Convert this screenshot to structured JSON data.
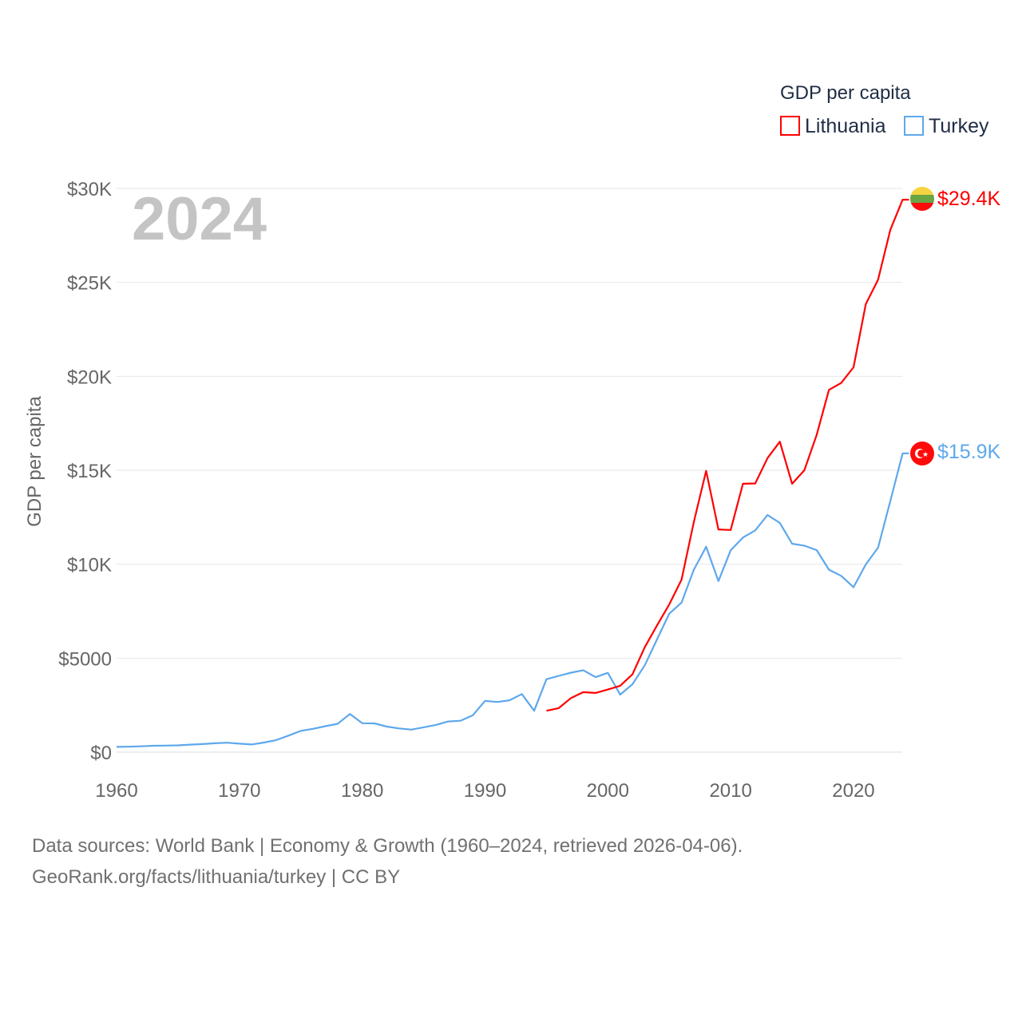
{
  "chart_data": {
    "type": "line",
    "title": "GDP per capita",
    "year_label": "2024",
    "xlabel": "",
    "ylabel": "GDP per capita",
    "xlim": [
      1960,
      2024
    ],
    "ylim": [
      0,
      30000
    ],
    "grid": true,
    "legend_placement": "top-right",
    "x_ticks": [
      1960,
      1970,
      1980,
      1990,
      2000,
      2010,
      2020
    ],
    "x_tick_labels": [
      "1960",
      "1970",
      "1980",
      "1990",
      "2000",
      "2010",
      "2020"
    ],
    "y_ticks": [
      0,
      5000,
      10000,
      15000,
      20000,
      25000,
      30000
    ],
    "y_tick_labels": [
      "$0",
      "$5000",
      "$10K",
      "$15K",
      "$20K",
      "$25K",
      "$30K"
    ],
    "series": [
      {
        "name": "Lithuania",
        "color": "#ff0000",
        "end_label": "$29.4K",
        "x": [
          1995,
          1996,
          1997,
          1998,
          1999,
          2000,
          2001,
          2002,
          2003,
          2004,
          2005,
          2006,
          2007,
          2008,
          2009,
          2010,
          2011,
          2012,
          2013,
          2014,
          2015,
          2016,
          2017,
          2018,
          2019,
          2020,
          2021,
          2022,
          2023,
          2024
        ],
        "values": [
          2200,
          2340,
          2880,
          3190,
          3150,
          3330,
          3530,
          4140,
          5580,
          6740,
          7860,
          9180,
          12250,
          14970,
          11850,
          11820,
          14280,
          14300,
          15650,
          16520,
          14280,
          15000,
          16880,
          19280,
          19650,
          20480,
          23850,
          25140,
          27800,
          29400
        ]
      },
      {
        "name": "Turkey",
        "color": "#5ea8ec",
        "end_label": "$15.9K",
        "x": [
          1960,
          1961,
          1962,
          1963,
          1964,
          1965,
          1966,
          1967,
          1968,
          1969,
          1970,
          1971,
          1972,
          1973,
          1974,
          1975,
          1976,
          1977,
          1978,
          1979,
          1980,
          1981,
          1982,
          1983,
          1984,
          1985,
          1986,
          1987,
          1988,
          1989,
          1990,
          1991,
          1992,
          1993,
          1994,
          1995,
          1996,
          1997,
          1998,
          1999,
          2000,
          2001,
          2002,
          2003,
          2004,
          2005,
          2006,
          2007,
          2008,
          2009,
          2010,
          2011,
          2012,
          2013,
          2014,
          2015,
          2016,
          2017,
          2018,
          2019,
          2020,
          2021,
          2022,
          2023,
          2024
        ],
        "values": [
          280,
          290,
          310,
          340,
          350,
          360,
          400,
          430,
          470,
          500,
          450,
          410,
          510,
          640,
          880,
          1130,
          1240,
          1380,
          1510,
          2030,
          1540,
          1530,
          1360,
          1260,
          1200,
          1320,
          1450,
          1630,
          1670,
          1960,
          2730,
          2670,
          2760,
          3090,
          2200,
          3880,
          4060,
          4230,
          4360,
          3990,
          4220,
          3060,
          3610,
          4620,
          5990,
          7370,
          7960,
          9710,
          10930,
          9100,
          10740,
          11420,
          11800,
          12620,
          12200,
          11090,
          10990,
          10750,
          9710,
          9380,
          8780,
          9990,
          10880,
          13370,
          15900
        ]
      }
    ]
  },
  "footer": {
    "line1": "Data sources: World Bank | Economy & Growth (1960–2024, retrieved 2026-04-06).",
    "line2": "GeoRank.org/facts/lithuania/turkey | CC BY"
  }
}
